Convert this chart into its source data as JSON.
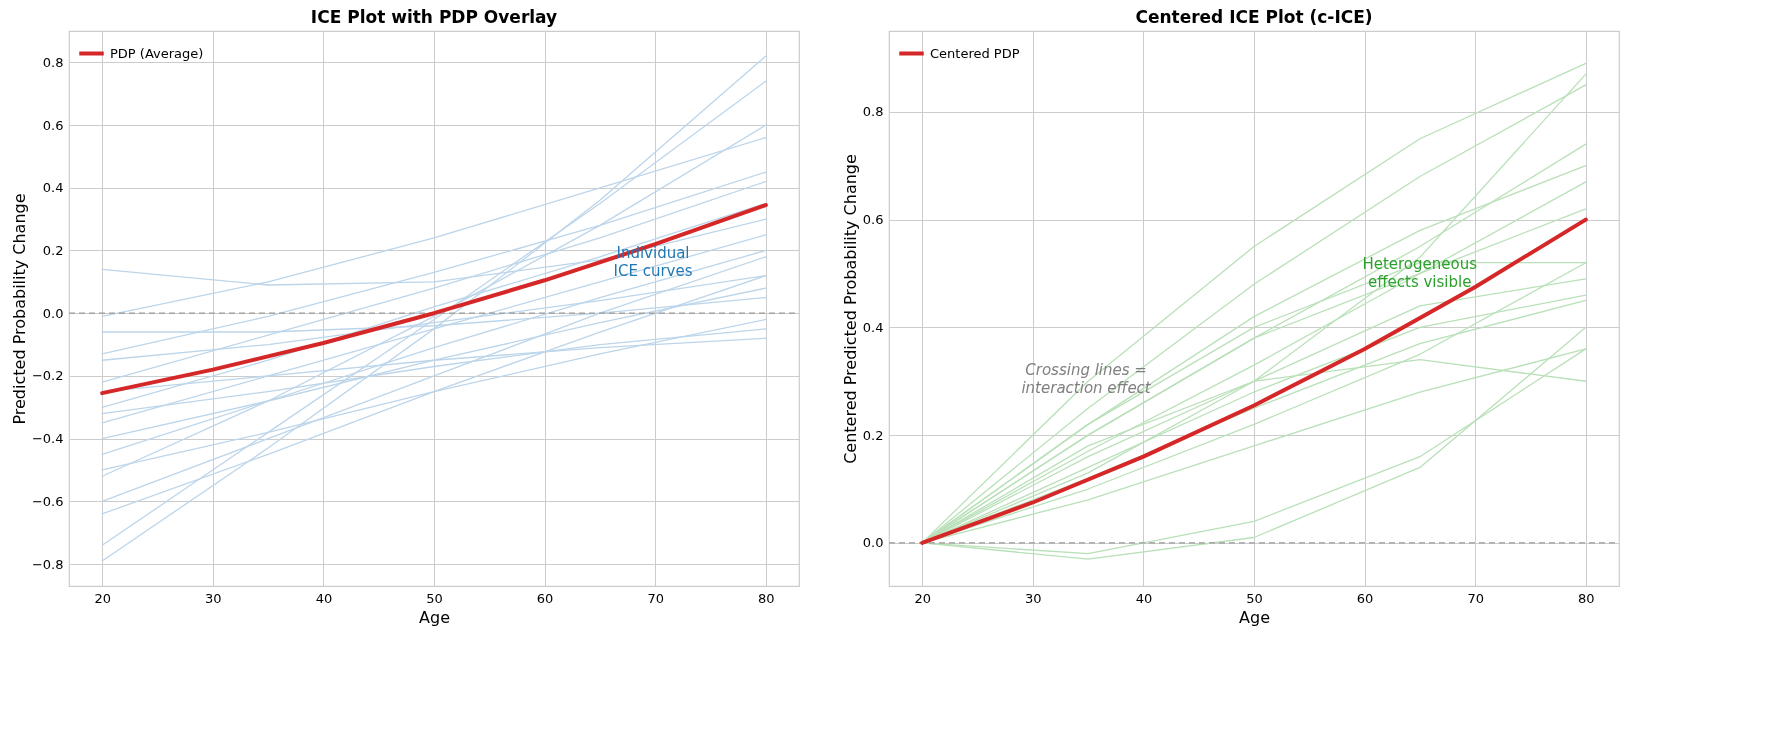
{
  "chart_data": [
    {
      "type": "line",
      "title": "ICE Plot with PDP Overlay",
      "xlabel": "Age",
      "ylabel": "Predicted Probability Change",
      "xlim": [
        17,
        83
      ],
      "xticks": [
        20,
        30,
        40,
        50,
        60,
        70,
        80
      ],
      "ylim": [
        -0.87,
        0.9
      ],
      "yticks": [
        {
          "value": -0.8,
          "label": "−0.8"
        },
        {
          "value": -0.6,
          "label": "−0.6"
        },
        {
          "value": -0.4,
          "label": "−0.4"
        },
        {
          "value": -0.2,
          "label": "−0.2"
        },
        {
          "value": 0,
          "label": "0.0"
        },
        {
          "value": 0.2,
          "label": "0.2"
        },
        {
          "value": 0.4,
          "label": "0.4"
        },
        {
          "value": 0.6,
          "label": "0.6"
        },
        {
          "value": 0.8,
          "label": "0.8"
        }
      ],
      "grid": true,
      "legend": "top left",
      "marker": "none",
      "line_style": "solid",
      "x": [
        20,
        35,
        50,
        65,
        80
      ],
      "series": [
        {
          "color": "#bcd5ea",
          "values": [
            -0.79,
            -0.43,
            -0.05,
            0.36,
            0.82
          ]
        },
        {
          "color": "#bcd5ea",
          "values": [
            -0.74,
            -0.38,
            -0.02,
            0.35,
            0.74
          ]
        },
        {
          "color": "#bcd5ea",
          "values": [
            0.14,
            0.09,
            0.1,
            0.17,
            0.3
          ]
        },
        {
          "color": "#bcd5ea",
          "values": [
            -0.52,
            -0.28,
            -0.01,
            0.28,
            0.6
          ]
        },
        {
          "color": "#bcd5ea",
          "values": [
            -0.01,
            0.1,
            0.24,
            0.4,
            0.56
          ]
        },
        {
          "color": "#bcd5ea",
          "values": [
            -0.13,
            -0.01,
            0.13,
            0.28,
            0.45
          ]
        },
        {
          "color": "#bcd5ea",
          "values": [
            -0.22,
            -0.07,
            0.08,
            0.24,
            0.42
          ]
        },
        {
          "color": "#bcd5ea",
          "values": [
            -0.3,
            -0.15,
            0.02,
            0.18,
            0.35
          ]
        },
        {
          "color": "#bcd5ea",
          "values": [
            -0.35,
            -0.2,
            -0.05,
            0.1,
            0.25
          ]
        },
        {
          "color": "#bcd5ea",
          "values": [
            -0.45,
            -0.28,
            -0.11,
            0.05,
            0.2
          ]
        },
        {
          "color": "#bcd5ea",
          "values": [
            -0.6,
            -0.4,
            -0.2,
            0.0,
            0.18
          ]
        },
        {
          "color": "#bcd5ea",
          "values": [
            -0.4,
            -0.28,
            -0.15,
            -0.03,
            0.08
          ]
        },
        {
          "color": "#bcd5ea",
          "values": [
            -0.25,
            -0.2,
            -0.15,
            -0.11,
            -0.08
          ]
        },
        {
          "color": "#bcd5ea",
          "values": [
            -0.64,
            -0.45,
            -0.25,
            -0.06,
            0.12
          ]
        },
        {
          "color": "#bcd5ea",
          "values": [
            -0.5,
            -0.38,
            -0.25,
            -0.13,
            -0.02
          ]
        },
        {
          "color": "#bcd5ea",
          "values": [
            -0.15,
            -0.1,
            -0.03,
            0.04,
            0.12
          ]
        },
        {
          "color": "#bcd5ea",
          "values": [
            -0.06,
            -0.06,
            -0.04,
            0.0,
            0.05
          ]
        },
        {
          "color": "#bcd5ea",
          "values": [
            -0.32,
            -0.25,
            -0.17,
            -0.1,
            -0.05
          ]
        },
        {
          "name": "PDP (Average)",
          "color": "#d62728",
          "x": [
            20,
            30,
            40,
            50,
            60,
            70,
            80
          ],
          "values": [
            -0.255,
            -0.18,
            -0.095,
            0.0,
            0.105,
            0.22,
            0.345
          ]
        }
      ],
      "ref_lines": [
        {
          "axis": "y",
          "value": 0,
          "color": "#999999",
          "line_style": "dashed"
        }
      ],
      "annotations": [
        "Individual\nICE curves"
      ]
    },
    {
      "type": "line",
      "title": "Centered ICE Plot (c-ICE)",
      "xlabel": "Age",
      "ylabel": "Centered Predicted Probability Change",
      "xlim": [
        17,
        83
      ],
      "xticks": [
        20,
        30,
        40,
        50,
        60,
        70,
        80
      ],
      "ylim": [
        -0.08,
        0.95
      ],
      "yticks": [
        {
          "value": 0,
          "label": "0.0"
        },
        {
          "value": 0.2,
          "label": "0.2"
        },
        {
          "value": 0.4,
          "label": "0.4"
        },
        {
          "value": 0.6,
          "label": "0.6"
        },
        {
          "value": 0.8,
          "label": "0.8"
        }
      ],
      "grid": true,
      "legend": "top left",
      "marker": "none",
      "line_style": "solid",
      "x": [
        20,
        35,
        50,
        65,
        80
      ],
      "series": [
        {
          "color": "#b9e0b9",
          "values": [
            0,
            0.3,
            0.55,
            0.75,
            0.89
          ]
        },
        {
          "color": "#b9e0b9",
          "values": [
            0,
            0.25,
            0.48,
            0.68,
            0.85
          ]
        },
        {
          "color": "#b9e0b9",
          "values": [
            0,
            0.13,
            0.3,
            0.53,
            0.87
          ]
        },
        {
          "color": "#b9e0b9",
          "values": [
            0,
            0.22,
            0.42,
            0.58,
            0.7
          ]
        },
        {
          "color": "#b9e0b9",
          "values": [
            0,
            0.2,
            0.38,
            0.55,
            0.74
          ]
        },
        {
          "color": "#b9e0b9",
          "values": [
            0,
            0.17,
            0.33,
            0.5,
            0.67
          ]
        },
        {
          "color": "#b9e0b9",
          "values": [
            0,
            0.2,
            0.38,
            0.5,
            0.62
          ]
        },
        {
          "color": "#b9e0b9",
          "values": [
            0,
            0.22,
            0.4,
            0.52,
            0.52
          ]
        },
        {
          "color": "#b9e0b9",
          "values": [
            0,
            0.16,
            0.3,
            0.44,
            0.49
          ]
        },
        {
          "color": "#b9e0b9",
          "values": [
            0,
            0.12,
            0.25,
            0.37,
            0.45
          ]
        },
        {
          "color": "#b9e0b9",
          "values": [
            0,
            0.18,
            0.3,
            0.34,
            0.3
          ]
        },
        {
          "color": "#b9e0b9",
          "values": [
            0,
            0.08,
            0.18,
            0.28,
            0.36
          ]
        },
        {
          "color": "#b9e0b9",
          "values": [
            0,
            -0.03,
            0.01,
            0.14,
            0.4
          ]
        },
        {
          "color": "#b9e0b9",
          "values": [
            0,
            -0.02,
            0.04,
            0.16,
            0.36
          ]
        },
        {
          "color": "#b9e0b9",
          "values": [
            0,
            0.1,
            0.22,
            0.35,
            0.52
          ]
        },
        {
          "color": "#b9e0b9",
          "values": [
            0,
            0.14,
            0.28,
            0.4,
            0.46
          ]
        },
        {
          "name": "Centered PDP",
          "color": "#d62728",
          "x": [
            20,
            30,
            40,
            50,
            60,
            70,
            80
          ],
          "values": [
            0,
            0.075,
            0.16,
            0.255,
            0.36,
            0.475,
            0.6
          ]
        }
      ],
      "ref_lines": [
        {
          "axis": "y",
          "value": 0,
          "color": "#999999",
          "line_style": "dashed"
        }
      ],
      "annotations": [
        "Heterogeneous\neffects visible",
        "Crossing lines =\ninteraction effect"
      ]
    }
  ]
}
